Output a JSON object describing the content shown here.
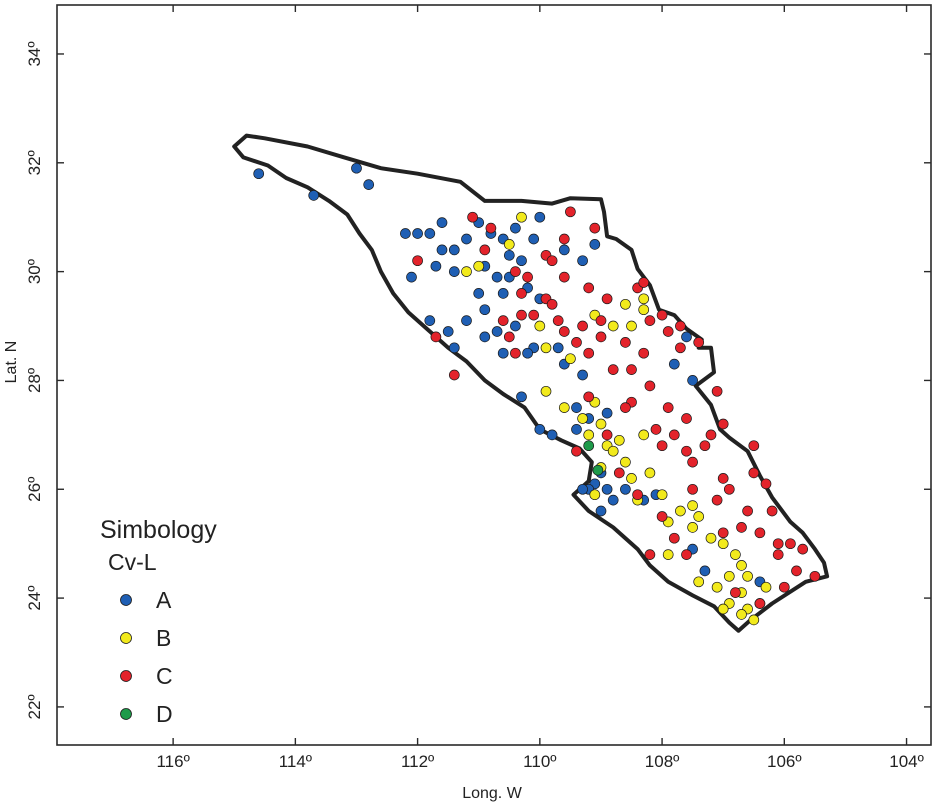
{
  "axes": {
    "xlabel": "Long. W",
    "ylabel": "Lat. N",
    "xticks": [
      {
        "value": -116,
        "label": "116º"
      },
      {
        "value": -114,
        "label": "114º"
      },
      {
        "value": -112,
        "label": "112º"
      },
      {
        "value": -110,
        "label": "110º"
      },
      {
        "value": -108,
        "label": "108º"
      },
      {
        "value": -106,
        "label": "106º"
      },
      {
        "value": -104,
        "label": "104º"
      }
    ],
    "yticks": [
      {
        "value": 22,
        "label": "22º"
      },
      {
        "value": 24,
        "label": "24º"
      },
      {
        "value": 26,
        "label": "26º"
      },
      {
        "value": 28,
        "label": "28º"
      },
      {
        "value": 30,
        "label": "30º"
      },
      {
        "value": 32,
        "label": "32º"
      },
      {
        "value": 34,
        "label": "34º"
      }
    ],
    "xlim": [
      -117.9,
      -103.6
    ],
    "ylim": [
      21.3,
      34.9
    ]
  },
  "legend": {
    "title": "Simbology",
    "subtitle": "Cv-L",
    "items": [
      {
        "label": "A",
        "color": "#1f5fb4"
      },
      {
        "label": "B",
        "color": "#f2ea1c"
      },
      {
        "label": "C",
        "color": "#e3232b"
      },
      {
        "label": "D",
        "color": "#1e9a4a"
      }
    ]
  },
  "chart_data": {
    "type": "scatter",
    "xlabel": "Long. W",
    "ylabel": "Lat. N",
    "xlim": [
      -117.9,
      -103.6
    ],
    "ylim": [
      21.3,
      34.9
    ],
    "series": [
      {
        "name": "A",
        "color": "#1f5fb4",
        "points": [
          [
            -114.6,
            31.8
          ],
          [
            -113.7,
            31.4
          ],
          [
            -113.0,
            31.9
          ],
          [
            -112.8,
            31.6
          ],
          [
            -112.2,
            30.7
          ],
          [
            -112.0,
            30.7
          ],
          [
            -111.8,
            30.7
          ],
          [
            -111.6,
            30.9
          ],
          [
            -111.6,
            30.4
          ],
          [
            -111.4,
            30.4
          ],
          [
            -111.2,
            30.6
          ],
          [
            -111.0,
            30.9
          ],
          [
            -110.8,
            30.7
          ],
          [
            -110.6,
            30.6
          ],
          [
            -110.5,
            30.3
          ],
          [
            -112.1,
            29.9
          ],
          [
            -111.7,
            30.1
          ],
          [
            -111.4,
            30.0
          ],
          [
            -110.9,
            30.1
          ],
          [
            -110.7,
            29.9
          ],
          [
            -110.5,
            29.9
          ],
          [
            -110.3,
            30.2
          ],
          [
            -110.4,
            30.8
          ],
          [
            -110.1,
            30.6
          ],
          [
            -110.0,
            31.0
          ],
          [
            -109.6,
            30.4
          ],
          [
            -109.3,
            30.2
          ],
          [
            -109.1,
            30.5
          ],
          [
            -111.8,
            29.1
          ],
          [
            -111.5,
            28.9
          ],
          [
            -111.4,
            28.6
          ],
          [
            -111.2,
            29.1
          ],
          [
            -110.9,
            29.3
          ],
          [
            -110.7,
            28.9
          ],
          [
            -110.6,
            29.6
          ],
          [
            -110.4,
            29.0
          ],
          [
            -110.2,
            29.7
          ],
          [
            -110.0,
            29.5
          ],
          [
            -110.1,
            28.6
          ],
          [
            -109.7,
            28.6
          ],
          [
            -109.6,
            28.3
          ],
          [
            -109.3,
            28.1
          ],
          [
            -110.9,
            28.8
          ],
          [
            -110.6,
            28.5
          ],
          [
            -110.2,
            28.5
          ],
          [
            -111.0,
            29.6
          ],
          [
            -110.3,
            27.7
          ],
          [
            -110.0,
            27.1
          ],
          [
            -109.8,
            27.0
          ],
          [
            -109.4,
            27.1
          ],
          [
            -109.4,
            27.5
          ],
          [
            -109.2,
            27.3
          ],
          [
            -108.9,
            27.4
          ],
          [
            -109.0,
            26.3
          ],
          [
            -109.1,
            26.1
          ],
          [
            -108.9,
            26.0
          ],
          [
            -109.2,
            26.0
          ],
          [
            -108.8,
            25.8
          ],
          [
            -108.6,
            26.0
          ],
          [
            -108.3,
            25.8
          ],
          [
            -108.1,
            25.9
          ],
          [
            -109.0,
            25.6
          ],
          [
            -109.3,
            26.0
          ],
          [
            -107.8,
            28.3
          ],
          [
            -107.6,
            28.8
          ],
          [
            -107.5,
            28.0
          ],
          [
            -107.5,
            24.9
          ],
          [
            -107.3,
            24.5
          ],
          [
            -106.4,
            24.3
          ]
        ]
      },
      {
        "name": "B",
        "color": "#f2ea1c",
        "points": [
          [
            -111.2,
            30.0
          ],
          [
            -111.0,
            30.1
          ],
          [
            -110.5,
            30.5
          ],
          [
            -110.3,
            31.0
          ],
          [
            -109.9,
            27.8
          ],
          [
            -109.9,
            28.6
          ],
          [
            -109.5,
            28.4
          ],
          [
            -109.6,
            27.5
          ],
          [
            -109.3,
            27.3
          ],
          [
            -109.2,
            27.0
          ],
          [
            -109.0,
            27.2
          ],
          [
            -109.1,
            27.6
          ],
          [
            -108.9,
            26.8
          ],
          [
            -109.0,
            26.4
          ],
          [
            -108.8,
            26.7
          ],
          [
            -108.6,
            26.5
          ],
          [
            -108.5,
            26.2
          ],
          [
            -108.3,
            27.0
          ],
          [
            -108.7,
            26.9
          ],
          [
            -108.2,
            26.3
          ],
          [
            -108.4,
            25.8
          ],
          [
            -108.0,
            25.9
          ],
          [
            -107.9,
            25.4
          ],
          [
            -107.7,
            25.6
          ],
          [
            -107.4,
            25.5
          ],
          [
            -107.2,
            25.1
          ],
          [
            -107.0,
            25.0
          ],
          [
            -106.8,
            24.8
          ],
          [
            -106.7,
            24.6
          ],
          [
            -106.6,
            24.4
          ],
          [
            -106.9,
            24.4
          ],
          [
            -107.1,
            24.2
          ],
          [
            -106.7,
            24.1
          ],
          [
            -106.9,
            23.9
          ],
          [
            -106.6,
            23.8
          ],
          [
            -106.5,
            23.6
          ],
          [
            -106.4,
            23.9
          ],
          [
            -106.3,
            24.2
          ],
          [
            -106.7,
            23.7
          ],
          [
            -107.5,
            25.3
          ],
          [
            -107.4,
            24.3
          ],
          [
            -107.0,
            23.8
          ],
          [
            -108.6,
            29.4
          ],
          [
            -108.3,
            29.3
          ],
          [
            -108.3,
            29.5
          ],
          [
            -108.5,
            29.0
          ],
          [
            -108.8,
            29.0
          ],
          [
            -109.1,
            29.2
          ],
          [
            -110.0,
            29.0
          ],
          [
            -107.9,
            24.8
          ],
          [
            -107.5,
            25.7
          ],
          [
            -109.1,
            25.9
          ]
        ]
      },
      {
        "name": "C",
        "color": "#e3232b",
        "points": [
          [
            -111.7,
            28.8
          ],
          [
            -111.4,
            28.1
          ],
          [
            -112.0,
            30.2
          ],
          [
            -111.1,
            31.0
          ],
          [
            -110.8,
            30.8
          ],
          [
            -110.9,
            30.4
          ],
          [
            -110.4,
            30.0
          ],
          [
            -110.2,
            29.9
          ],
          [
            -110.3,
            29.2
          ],
          [
            -110.6,
            29.1
          ],
          [
            -110.5,
            28.8
          ],
          [
            -110.1,
            29.2
          ],
          [
            -109.9,
            29.5
          ],
          [
            -109.9,
            30.3
          ],
          [
            -109.6,
            30.6
          ],
          [
            -109.5,
            31.1
          ],
          [
            -109.1,
            30.8
          ],
          [
            -109.6,
            29.9
          ],
          [
            -109.8,
            29.4
          ],
          [
            -109.7,
            29.1
          ],
          [
            -109.6,
            28.9
          ],
          [
            -109.3,
            29.0
          ],
          [
            -109.4,
            28.7
          ],
          [
            -109.2,
            28.5
          ],
          [
            -109.0,
            28.8
          ],
          [
            -108.9,
            29.5
          ],
          [
            -108.6,
            28.7
          ],
          [
            -108.3,
            28.5
          ],
          [
            -108.5,
            28.2
          ],
          [
            -108.2,
            29.1
          ],
          [
            -108.0,
            29.2
          ],
          [
            -107.9,
            28.9
          ],
          [
            -107.7,
            28.6
          ],
          [
            -107.4,
            28.7
          ],
          [
            -107.1,
            27.8
          ],
          [
            -108.2,
            27.9
          ],
          [
            -107.9,
            27.5
          ],
          [
            -108.1,
            27.1
          ],
          [
            -107.8,
            27.0
          ],
          [
            -108.0,
            26.8
          ],
          [
            -107.6,
            26.7
          ],
          [
            -107.3,
            26.8
          ],
          [
            -107.2,
            27.0
          ],
          [
            -107.5,
            26.5
          ],
          [
            -107.0,
            26.2
          ],
          [
            -106.9,
            26.0
          ],
          [
            -106.6,
            25.6
          ],
          [
            -106.5,
            26.3
          ],
          [
            -106.3,
            26.1
          ],
          [
            -106.4,
            25.2
          ],
          [
            -106.1,
            25.0
          ],
          [
            -106.1,
            24.8
          ],
          [
            -106.0,
            24.2
          ],
          [
            -105.8,
            24.5
          ],
          [
            -105.9,
            25.0
          ],
          [
            -106.7,
            25.3
          ],
          [
            -107.0,
            25.2
          ],
          [
            -107.8,
            25.1
          ],
          [
            -108.2,
            24.8
          ],
          [
            -107.6,
            24.8
          ],
          [
            -108.0,
            25.5
          ],
          [
            -108.5,
            27.6
          ],
          [
            -108.9,
            27.0
          ],
          [
            -108.7,
            26.3
          ],
          [
            -109.2,
            27.7
          ],
          [
            -109.4,
            26.7
          ],
          [
            -108.4,
            25.9
          ],
          [
            -107.5,
            26.0
          ],
          [
            -107.1,
            25.8
          ],
          [
            -106.8,
            24.1
          ],
          [
            -106.4,
            23.9
          ],
          [
            -110.4,
            28.5
          ],
          [
            -110.3,
            29.6
          ],
          [
            -109.8,
            30.2
          ],
          [
            -109.2,
            29.7
          ],
          [
            -109.0,
            29.1
          ],
          [
            -108.4,
            29.7
          ],
          [
            -108.3,
            29.8
          ],
          [
            -107.7,
            29.0
          ],
          [
            -108.8,
            28.2
          ],
          [
            -108.6,
            27.5
          ],
          [
            -107.6,
            27.3
          ],
          [
            -107.0,
            27.2
          ],
          [
            -106.5,
            26.8
          ],
          [
            -105.7,
            24.9
          ],
          [
            -105.5,
            24.4
          ],
          [
            -106.2,
            25.6
          ]
        ]
      },
      {
        "name": "D",
        "color": "#1e9a4a",
        "points": [
          [
            -109.2,
            26.8
          ],
          [
            -109.05,
            26.35
          ]
        ]
      }
    ]
  },
  "region_outline": [
    [
      -114.8,
      32.5
    ],
    [
      -114.5,
      32.45
    ],
    [
      -113.8,
      32.3
    ],
    [
      -113.2,
      32.1
    ],
    [
      -112.6,
      31.9
    ],
    [
      -112.0,
      31.8
    ],
    [
      -111.3,
      31.65
    ],
    [
      -110.9,
      31.3
    ],
    [
      -110.3,
      31.3
    ],
    [
      -109.8,
      31.25
    ],
    [
      -109.5,
      31.35
    ],
    [
      -109.0,
      31.33
    ],
    [
      -108.95,
      31.1
    ],
    [
      -108.9,
      30.65
    ],
    [
      -108.75,
      30.6
    ],
    [
      -108.5,
      30.4
    ],
    [
      -108.4,
      30.05
    ],
    [
      -108.2,
      29.75
    ],
    [
      -108.05,
      29.3
    ],
    [
      -107.8,
      29.2
    ],
    [
      -107.6,
      28.95
    ],
    [
      -107.35,
      28.75
    ],
    [
      -107.4,
      28.6
    ],
    [
      -107.2,
      28.6
    ],
    [
      -107.15,
      28.15
    ],
    [
      -107.45,
      27.9
    ],
    [
      -107.2,
      27.55
    ],
    [
      -107.05,
      27.1
    ],
    [
      -106.9,
      26.95
    ],
    [
      -106.6,
      26.7
    ],
    [
      -106.4,
      26.25
    ],
    [
      -106.2,
      25.85
    ],
    [
      -105.9,
      25.4
    ],
    [
      -105.7,
      25.2
    ],
    [
      -105.5,
      24.9
    ],
    [
      -105.35,
      24.65
    ],
    [
      -105.3,
      24.4
    ],
    [
      -105.65,
      24.3
    ],
    [
      -106.2,
      23.9
    ],
    [
      -106.55,
      23.6
    ],
    [
      -106.75,
      23.4
    ],
    [
      -106.9,
      23.55
    ],
    [
      -107.15,
      23.85
    ],
    [
      -107.5,
      24.05
    ],
    [
      -107.9,
      24.3
    ],
    [
      -108.2,
      24.6
    ],
    [
      -108.4,
      24.9
    ],
    [
      -108.8,
      25.3
    ],
    [
      -109.2,
      25.6
    ],
    [
      -109.45,
      25.9
    ],
    [
      -109.2,
      26.15
    ],
    [
      -109.15,
      26.5
    ],
    [
      -109.35,
      26.75
    ],
    [
      -109.65,
      26.9
    ],
    [
      -110.0,
      27.1
    ],
    [
      -110.25,
      27.5
    ],
    [
      -110.6,
      27.75
    ],
    [
      -110.9,
      28.0
    ],
    [
      -111.2,
      28.35
    ],
    [
      -111.5,
      28.6
    ],
    [
      -111.85,
      28.95
    ],
    [
      -112.15,
      29.25
    ],
    [
      -112.4,
      29.6
    ],
    [
      -112.6,
      30.0
    ],
    [
      -112.75,
      30.4
    ],
    [
      -112.95,
      30.7
    ],
    [
      -113.15,
      31.05
    ],
    [
      -113.45,
      31.3
    ],
    [
      -113.8,
      31.55
    ],
    [
      -114.15,
      31.72
    ],
    [
      -114.45,
      31.95
    ],
    [
      -114.85,
      32.1
    ],
    [
      -115.0,
      32.3
    ]
  ]
}
